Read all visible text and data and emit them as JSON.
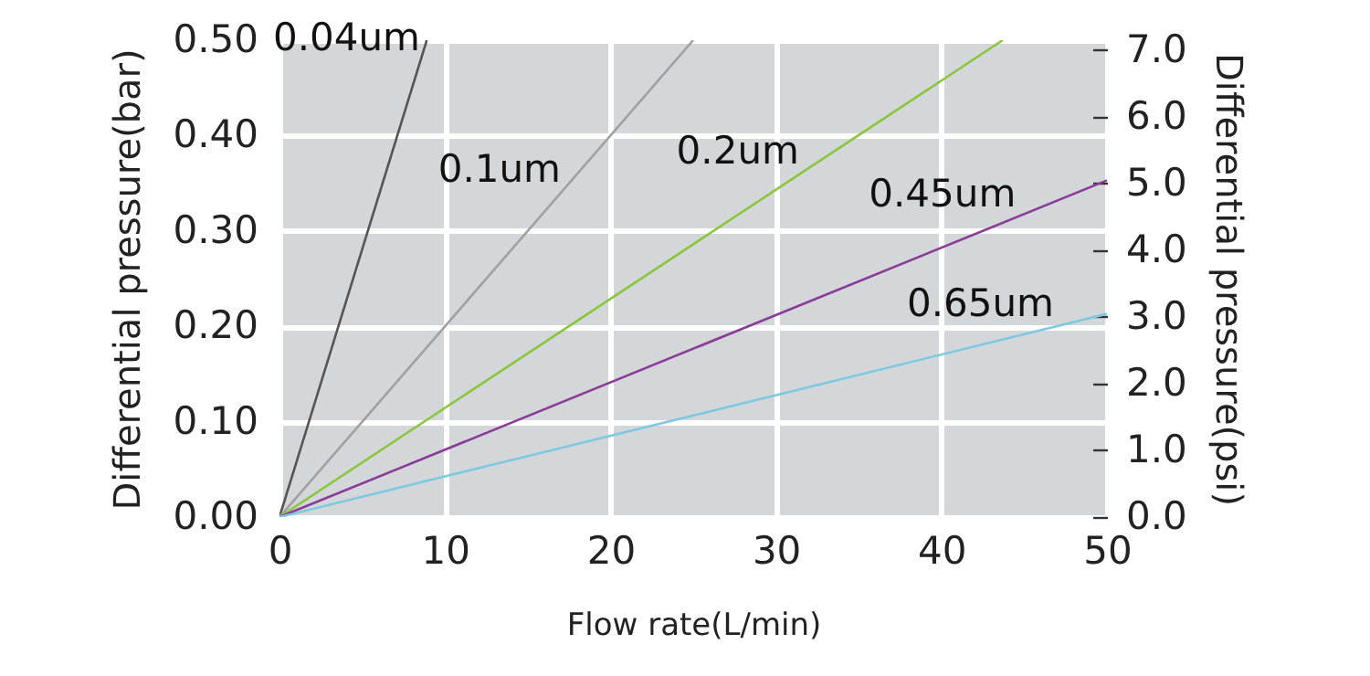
{
  "chart_data": {
    "type": "line",
    "xlabel": "Flow rate(L/min)",
    "ylabel": "Differential pressure(bar)",
    "y2label": "Differential pressure(psi)",
    "xlim": [
      0,
      50
    ],
    "xticks": [
      0,
      10,
      20,
      30,
      40,
      50
    ],
    "ylim": [
      0,
      0.5
    ],
    "yticks": [
      {
        "value": 0,
        "label": "0.00"
      },
      {
        "value": 0.1,
        "label": "0.10"
      },
      {
        "value": 0.2,
        "label": "0.20"
      },
      {
        "value": 0.3,
        "label": "0.30"
      },
      {
        "value": 0.4,
        "label": "0.40"
      },
      {
        "value": 0.5,
        "label": "0.50"
      }
    ],
    "y2lim": [
      0,
      7.15
    ],
    "y2ticks": [
      {
        "value": 0,
        "label": "0.0"
      },
      {
        "value": 1,
        "label": "1.0"
      },
      {
        "value": 2,
        "label": "2.0"
      },
      {
        "value": 3,
        "label": "3.0"
      },
      {
        "value": 4,
        "label": "4.0"
      },
      {
        "value": 5,
        "label": "5.0"
      },
      {
        "value": 6,
        "label": "6.0"
      },
      {
        "value": 7,
        "label": "7.0"
      }
    ],
    "grid": true,
    "line_style": "solid",
    "series": [
      {
        "color": "#555555",
        "x": [
          0,
          8.9
        ],
        "values": [
          0,
          0.5
        ]
      },
      {
        "color": "#a0a0a0",
        "x": [
          0,
          25
        ],
        "values": [
          0,
          0.5
        ]
      },
      {
        "color": "#8cc63f",
        "x": [
          0,
          43.7
        ],
        "values": [
          0,
          0.5
        ]
      },
      {
        "color": "#8a3c96",
        "x": [
          0,
          50
        ],
        "values": [
          0,
          0.353
        ]
      },
      {
        "color": "#7ec8e0",
        "x": [
          0,
          50
        ],
        "values": [
          0,
          0.213
        ]
      }
    ],
    "annotations": [
      {
        "text": "0.04um",
        "x": 8.5,
        "y": 0.4775
      },
      {
        "text": "0.1um",
        "x": 17,
        "y": 0.34
      },
      {
        "text": "0.2um",
        "x": 31.4,
        "y": 0.359
      },
      {
        "text": "0.45um",
        "x": 44.5,
        "y": 0.314
      },
      {
        "text": "0.65um",
        "x": 46.8,
        "y": 0.199
      }
    ]
  }
}
